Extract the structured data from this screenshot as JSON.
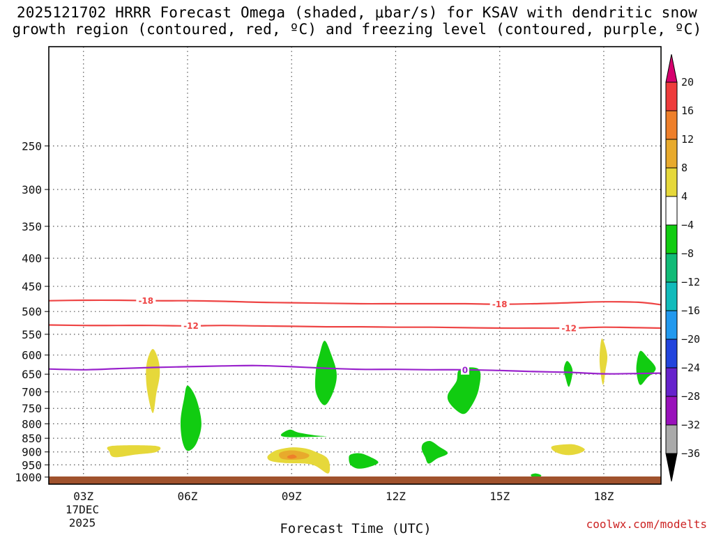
{
  "chart_data": {
    "type": "heatmap",
    "title_line1": "2025121702 HRRR Forecast Omega (shaded, μbar/s) for KSAV with dendritic snow",
    "title_line2": "growth region (contoured, red, ºC) and freezing level (contoured, purple, ºC)",
    "xlabel": "Forecast Time (UTC)",
    "ylabel": "",
    "credit": "coolwx.com/modelts",
    "x_range_hours": [
      2.0,
      19.65
    ],
    "y_range_hpa": [
      1030,
      165
    ],
    "x_ticks": [
      {
        "hour": 3,
        "label": "03Z"
      },
      {
        "hour": 6,
        "label": "06Z"
      },
      {
        "hour": 9,
        "label": "09Z"
      },
      {
        "hour": 12,
        "label": "12Z"
      },
      {
        "hour": 15,
        "label": "15Z"
      },
      {
        "hour": 18,
        "label": "18Z"
      }
    ],
    "date_label_line1": "17DEC",
    "date_label_line2": "2025",
    "y_ticks": [
      250,
      300,
      350,
      400,
      450,
      500,
      550,
      600,
      650,
      700,
      750,
      800,
      850,
      900,
      950,
      1000
    ],
    "grid": true,
    "colorbar": {
      "levels": [
        "20",
        "16",
        "12",
        "8",
        "4",
        "−4",
        "−8",
        "−12",
        "−16",
        "−20",
        "−24",
        "−28",
        "−32",
        "−36"
      ],
      "colors_top_to_bottom": [
        "#d6006e",
        "#ee3b3b",
        "#ee7f2a",
        "#e8aa2c",
        "#e6d83a",
        "#ffffff",
        "#11cc11",
        "#11bb77",
        "#11bbbb",
        "#2299ee",
        "#2244dd",
        "#6622cc",
        "#9911bb",
        "#aaaaaa",
        "#000000"
      ]
    },
    "contours": [
      {
        "label": "-18",
        "color": "#ee4444",
        "kind": "dendritic",
        "points": [
          [
            2.0,
            478
          ],
          [
            3.0,
            477
          ],
          [
            4.0,
            477
          ],
          [
            5.0,
            478
          ],
          [
            6.0,
            478
          ],
          [
            7.0,
            479
          ],
          [
            8.0,
            481
          ],
          [
            9.0,
            482
          ],
          [
            10.0,
            483
          ],
          [
            11.0,
            484
          ],
          [
            12.0,
            484
          ],
          [
            13.0,
            484
          ],
          [
            14.0,
            484
          ],
          [
            15.0,
            485
          ],
          [
            16.0,
            484
          ],
          [
            17.0,
            482
          ],
          [
            18.0,
            480
          ],
          [
            19.0,
            481
          ],
          [
            19.65,
            486
          ]
        ],
        "label_positions": [
          4.8,
          15.0
        ]
      },
      {
        "label": "-12",
        "color": "#ee4444",
        "kind": "dendritic",
        "points": [
          [
            2.0,
            529
          ],
          [
            3.0,
            530
          ],
          [
            4.0,
            530
          ],
          [
            5.0,
            530
          ],
          [
            6.0,
            531
          ],
          [
            7.0,
            530
          ],
          [
            8.0,
            531
          ],
          [
            9.0,
            532
          ],
          [
            10.0,
            533
          ],
          [
            11.0,
            533
          ],
          [
            12.0,
            534
          ],
          [
            13.0,
            534
          ],
          [
            14.0,
            535
          ],
          [
            15.0,
            536
          ],
          [
            16.0,
            536
          ],
          [
            17.0,
            536
          ],
          [
            18.0,
            534
          ],
          [
            19.0,
            535
          ],
          [
            19.65,
            536
          ]
        ],
        "label_positions": [
          6.1,
          17.0
        ]
      },
      {
        "label": "0",
        "color": "#9922cc",
        "kind": "freezing",
        "points": [
          [
            2.0,
            636
          ],
          [
            3.0,
            638
          ],
          [
            4.0,
            635
          ],
          [
            5.0,
            632
          ],
          [
            6.0,
            630
          ],
          [
            7.0,
            628
          ],
          [
            8.0,
            627
          ],
          [
            9.0,
            630
          ],
          [
            10.0,
            634
          ],
          [
            11.0,
            637
          ],
          [
            12.0,
            637
          ],
          [
            13.0,
            638
          ],
          [
            14.0,
            638
          ],
          [
            15.0,
            640
          ],
          [
            16.0,
            643
          ],
          [
            17.0,
            645
          ],
          [
            18.0,
            649
          ],
          [
            19.0,
            648
          ],
          [
            19.65,
            647
          ]
        ],
        "label_positions": [
          14.0
        ]
      }
    ],
    "omega_areas": [
      {
        "color": "#e6d83a",
        "poly": [
          [
            5.0,
            585
          ],
          [
            5.15,
            610
          ],
          [
            5.2,
            650
          ],
          [
            5.1,
            705
          ],
          [
            5.0,
            765
          ],
          [
            4.85,
            705
          ],
          [
            4.8,
            650
          ],
          [
            4.85,
            610
          ]
        ]
      },
      {
        "color": "#11cc11",
        "poly": [
          [
            6.0,
            682
          ],
          [
            6.25,
            720
          ],
          [
            6.4,
            800
          ],
          [
            6.25,
            870
          ],
          [
            6.0,
            896
          ],
          [
            5.85,
            860
          ],
          [
            5.8,
            790
          ],
          [
            5.9,
            720
          ]
        ]
      },
      {
        "color": "#e6d83a",
        "poly": [
          [
            3.8,
            878
          ],
          [
            5.1,
            878
          ],
          [
            5.1,
            900
          ],
          [
            4.5,
            910
          ],
          [
            3.9,
            920
          ],
          [
            3.75,
            900
          ]
        ]
      },
      {
        "color": "#11cc11",
        "poly": [
          [
            9.95,
            565
          ],
          [
            10.15,
            600
          ],
          [
            10.3,
            650
          ],
          [
            10.2,
            700
          ],
          [
            9.95,
            740
          ],
          [
            9.7,
            700
          ],
          [
            9.7,
            640
          ],
          [
            9.8,
            600
          ]
        ]
      },
      {
        "color": "#11cc11",
        "poly": [
          [
            8.7,
            836
          ],
          [
            8.95,
            820
          ],
          [
            9.2,
            830
          ],
          [
            9.7,
            840
          ],
          [
            10.0,
            843
          ],
          [
            9.3,
            846
          ],
          [
            8.8,
            845
          ]
        ]
      },
      {
        "color": "#e6d83a",
        "poly": [
          [
            8.4,
            905
          ],
          [
            8.6,
            892
          ],
          [
            9.0,
            883
          ],
          [
            9.4,
            887
          ],
          [
            9.7,
            900
          ],
          [
            10.0,
            920
          ],
          [
            10.1,
            950
          ],
          [
            10.05,
            985
          ],
          [
            9.7,
            955
          ],
          [
            9.4,
            945
          ],
          [
            8.8,
            943
          ],
          [
            8.4,
            935
          ],
          [
            8.3,
            920
          ]
        ]
      },
      {
        "color": "#e8aa2c",
        "poly": [
          [
            8.65,
            905
          ],
          [
            8.9,
            895
          ],
          [
            9.2,
            897
          ],
          [
            9.5,
            910
          ],
          [
            9.4,
            925
          ],
          [
            9.0,
            930
          ],
          [
            8.7,
            925
          ]
        ]
      },
      {
        "color": "#ee7f2a",
        "poly": [
          [
            8.9,
            915
          ],
          [
            9.05,
            910
          ],
          [
            9.15,
            920
          ],
          [
            9.0,
            926
          ],
          [
            8.88,
            922
          ]
        ]
      },
      {
        "color": "#11cc11",
        "poly": [
          [
            10.7,
            910
          ],
          [
            10.95,
            905
          ],
          [
            11.2,
            915
          ],
          [
            11.5,
            940
          ],
          [
            11.2,
            960
          ],
          [
            10.9,
            965
          ],
          [
            10.7,
            950
          ],
          [
            10.65,
            925
          ]
        ]
      },
      {
        "color": "#11cc11",
        "poly": [
          [
            12.8,
            868
          ],
          [
            13.0,
            860
          ],
          [
            13.25,
            880
          ],
          [
            13.5,
            905
          ],
          [
            13.2,
            925
          ],
          [
            12.95,
            945
          ],
          [
            12.85,
            920
          ],
          [
            12.75,
            890
          ]
        ]
      },
      {
        "color": "#11cc11",
        "poly": [
          [
            13.85,
            637
          ],
          [
            14.4,
            637
          ],
          [
            14.4,
            690
          ],
          [
            14.2,
            740
          ],
          [
            13.95,
            768
          ],
          [
            13.6,
            740
          ],
          [
            13.5,
            710
          ],
          [
            13.75,
            670
          ]
        ]
      },
      {
        "color": "#11cc11",
        "poly": [
          [
            15.9,
            990
          ],
          [
            16.05,
            985
          ],
          [
            16.2,
            993
          ],
          [
            16.1,
            1003
          ],
          [
            15.95,
            1000
          ]
        ]
      },
      {
        "color": "#11cc11",
        "poly": [
          [
            16.95,
            615
          ],
          [
            17.1,
            640
          ],
          [
            17.0,
            685
          ],
          [
            16.9,
            660
          ],
          [
            16.85,
            635
          ]
        ]
      },
      {
        "color": "#e6d83a",
        "poly": [
          [
            16.5,
            880
          ],
          [
            16.9,
            872
          ],
          [
            17.2,
            874
          ],
          [
            17.45,
            890
          ],
          [
            17.3,
            905
          ],
          [
            16.95,
            912
          ],
          [
            16.6,
            900
          ]
        ]
      },
      {
        "color": "#e6d83a",
        "poly": [
          [
            17.95,
            560
          ],
          [
            18.1,
            600
          ],
          [
            18.05,
            640
          ],
          [
            17.98,
            680
          ],
          [
            17.9,
            640
          ],
          [
            17.88,
            600
          ]
        ]
      },
      {
        "color": "#11cc11",
        "poly": [
          [
            19.05,
            590
          ],
          [
            19.25,
            605
          ],
          [
            19.5,
            635
          ],
          [
            19.25,
            660
          ],
          [
            19.05,
            680
          ],
          [
            18.95,
            650
          ],
          [
            18.95,
            620
          ]
        ]
      }
    ],
    "ground_color": "#a0522d"
  }
}
